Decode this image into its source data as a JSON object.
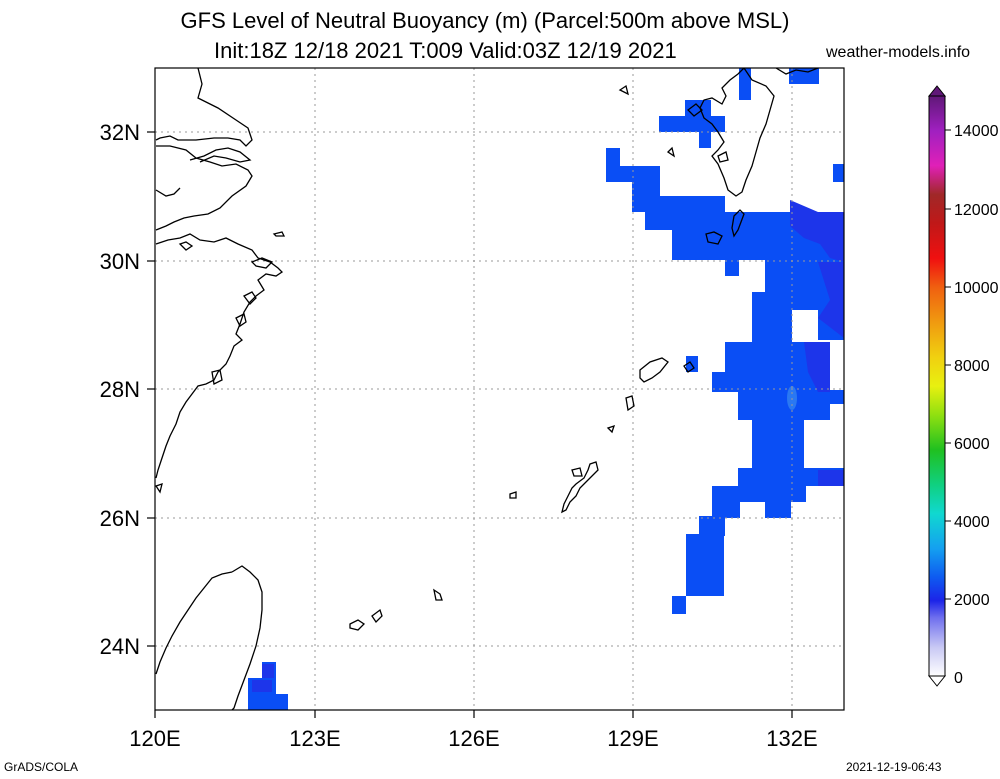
{
  "title_line1": "GFS Level of Neutral Buoyancy (m) (Parcel:500m above MSL)",
  "title_line2": "Init:18Z 12/18 2021 T:009 Valid:03Z 12/19 2021",
  "site": "weather-models.info",
  "footer_left": "GrADS/COLA",
  "footer_right": "2021-12-19-06:43",
  "map": {
    "lon_range": [
      120,
      133.3
    ],
    "lat_range": [
      23,
      33
    ],
    "lon_ticks": [
      "120E",
      "123E",
      "126E",
      "129E",
      "132E"
    ],
    "lat_ticks": [
      "32N",
      "30N",
      "28N",
      "26N",
      "24N"
    ]
  },
  "colorbar": {
    "labels": [
      "14000",
      "12000",
      "10000",
      "8000",
      "6000",
      "4000",
      "2000",
      "0"
    ]
  },
  "colors": {
    "field_main": "#0a4ef5",
    "field_dark": "#1e2ee8",
    "field_light": "#1c6ef0",
    "coast": "#000000",
    "grid": "#9a9a9a"
  }
}
